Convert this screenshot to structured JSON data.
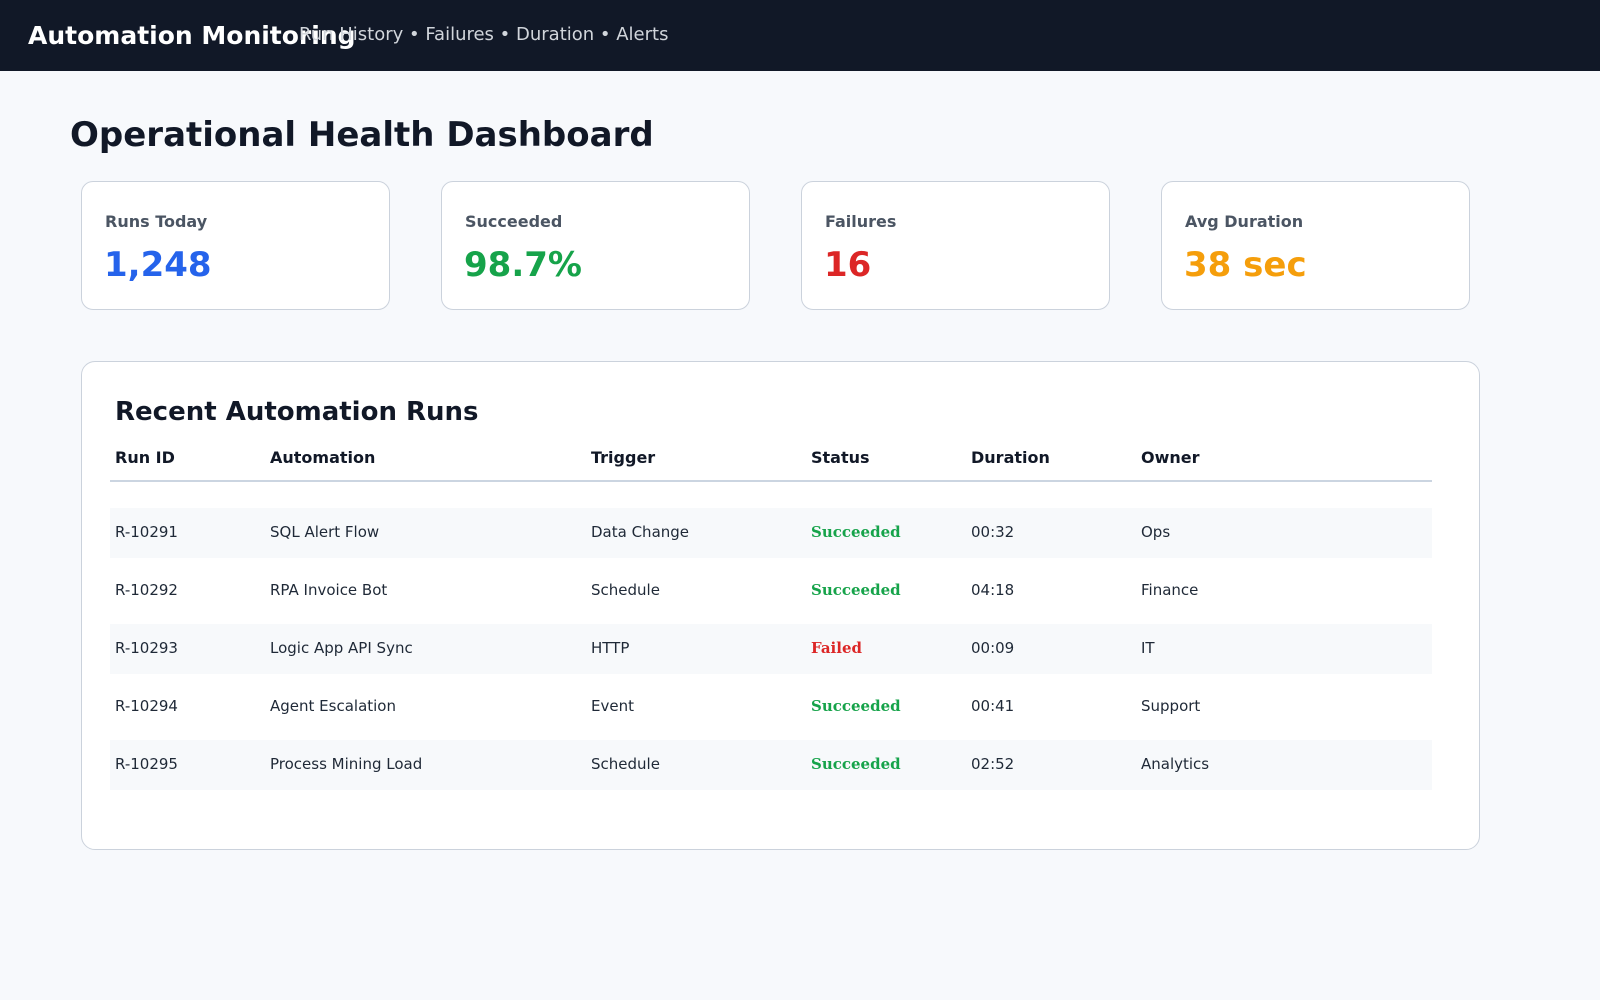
{
  "header": {
    "title": "Automation Monitoring",
    "nav": "Run History • Failures • Duration • Alerts"
  },
  "page": {
    "title": "Operational Health Dashboard"
  },
  "kpis": [
    {
      "label": "Runs Today",
      "value": "1,248",
      "color": "#2563eb"
    },
    {
      "label": "Succeeded",
      "value": "98.7%",
      "color": "#16a34a"
    },
    {
      "label": "Failures",
      "value": "16",
      "color": "#dc2626"
    },
    {
      "label": "Avg Duration",
      "value": "38 sec",
      "color": "#f59e0b"
    }
  ],
  "runs": {
    "title": "Recent Automation Runs",
    "columns": [
      "Run ID",
      "Automation",
      "Trigger",
      "Status",
      "Duration",
      "Owner"
    ],
    "rows": [
      {
        "id": "R-10291",
        "automation": "SQL Alert Flow",
        "trigger": "Data Change",
        "status": "Succeeded",
        "duration": "00:32",
        "owner": "Ops"
      },
      {
        "id": "R-10292",
        "automation": "RPA Invoice Bot",
        "trigger": "Schedule",
        "status": "Succeeded",
        "duration": "04:18",
        "owner": "Finance"
      },
      {
        "id": "R-10293",
        "automation": "Logic App API Sync",
        "trigger": "HTTP",
        "status": "Failed",
        "duration": "00:09",
        "owner": "IT"
      },
      {
        "id": "R-10294",
        "automation": "Agent Escalation",
        "trigger": "Event",
        "status": "Succeeded",
        "duration": "00:41",
        "owner": "Support"
      },
      {
        "id": "R-10295",
        "automation": "Process Mining Load",
        "trigger": "Schedule",
        "status": "Succeeded",
        "duration": "02:52",
        "owner": "Analytics"
      }
    ]
  },
  "status_colors": {
    "Succeeded": "#16a34a",
    "Failed": "#dc2626"
  }
}
